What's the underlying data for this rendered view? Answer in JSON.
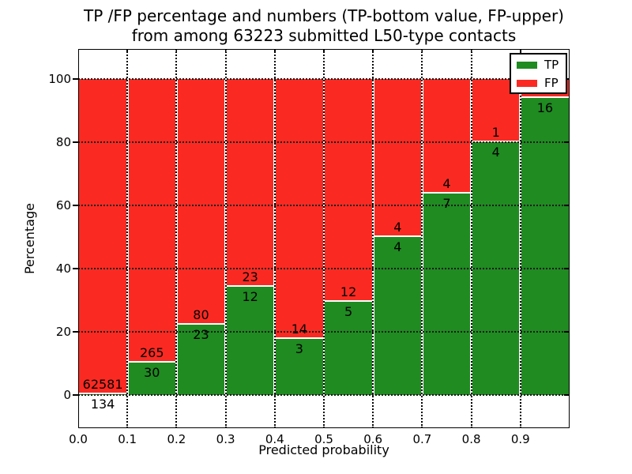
{
  "chart_data": {
    "type": "bar",
    "subtype": "stacked-percentage-histogram",
    "title_line1": "TP /FP percentage and numbers (TP-bottom value, FP-upper)",
    "title_line2": "from among 63223 submitted L50-type contacts",
    "xlabel": "Predicted probability",
    "ylabel": "Percentage",
    "xlim": [
      0.0,
      1.0
    ],
    "ylim": [
      -10.5,
      109.5
    ],
    "grid": "dotted",
    "x_tick_labels": [
      "0.0",
      "0.1",
      "0.2",
      "0.3",
      "0.4",
      "0.5",
      "0.6",
      "0.7",
      "0.8",
      "0.9"
    ],
    "y_ticks": [
      0,
      20,
      40,
      60,
      80,
      100
    ],
    "y_tick_labels": [
      "0",
      "20",
      "40",
      "60",
      "80",
      "100"
    ],
    "colors": {
      "tp": "#1f8b21",
      "fp": "#fa2a22"
    },
    "legend": {
      "location": "upper right",
      "entries": [
        {
          "label": "TP",
          "color": "#1f8b21"
        },
        {
          "label": "FP",
          "color": "#fa2a22"
        }
      ]
    },
    "total_contacts": 63223,
    "bins": [
      {
        "x_start": 0.0,
        "x_end": 0.1,
        "tp": 134,
        "fp": 62581
      },
      {
        "x_start": 0.1,
        "x_end": 0.2,
        "tp": 30,
        "fp": 265
      },
      {
        "x_start": 0.2,
        "x_end": 0.3,
        "tp": 23,
        "fp": 80
      },
      {
        "x_start": 0.3,
        "x_end": 0.4,
        "tp": 12,
        "fp": 23
      },
      {
        "x_start": 0.4,
        "x_end": 0.5,
        "tp": 3,
        "fp": 14
      },
      {
        "x_start": 0.5,
        "x_end": 0.6,
        "tp": 5,
        "fp": 12
      },
      {
        "x_start": 0.6,
        "x_end": 0.7,
        "tp": 4,
        "fp": 4
      },
      {
        "x_start": 0.7,
        "x_end": 0.8,
        "tp": 7,
        "fp": 4
      },
      {
        "x_start": 0.8,
        "x_end": 0.9,
        "tp": 4,
        "fp": 1
      },
      {
        "x_start": 0.9,
        "x_end": 1.0,
        "tp": 16,
        "fp": 1
      }
    ]
  }
}
